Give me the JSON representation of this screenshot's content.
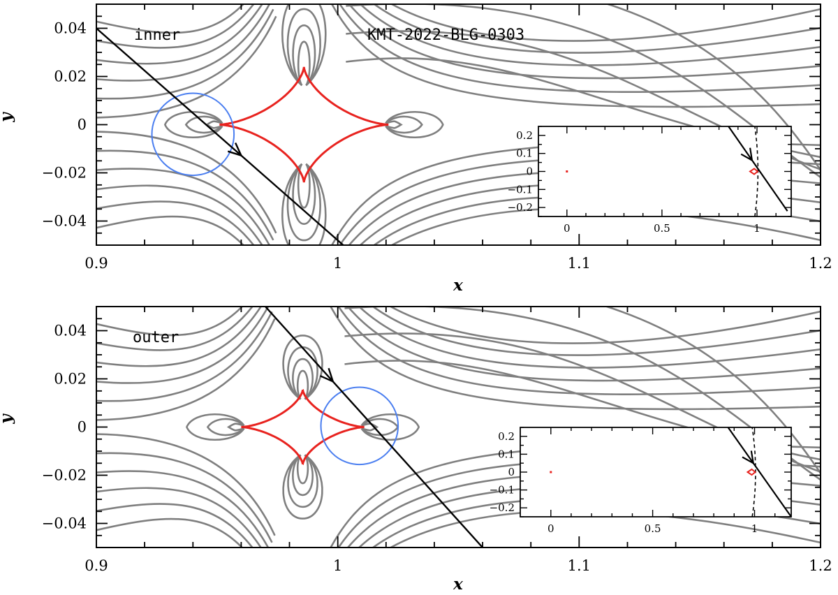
{
  "chart_data": [
    {
      "type": "line",
      "panel": "top",
      "title": "KMT-2022-BLG-0303",
      "label": "inner",
      "xlabel": "x",
      "ylabel": "y",
      "xlim": [
        0.9,
        1.2
      ],
      "ylim": [
        -0.05,
        0.05
      ],
      "xticks": [
        0.9,
        1,
        1.1,
        1.2
      ],
      "xtick_labels": [
        "0.9",
        "1",
        "1.1",
        "1.2"
      ],
      "yticks": [
        0.04,
        0.02,
        0,
        -0.02,
        -0.04
      ],
      "ytick_labels": [
        "0.04",
        "0.02",
        "0",
        "−0.02",
        "−0.04"
      ],
      "caustic": {
        "x_center": 0.986,
        "y_center": 0,
        "x_half_width": 0.035,
        "y_half_height": 0.024,
        "color": "#e8231f"
      },
      "source": {
        "x": 0.94,
        "y": -0.004,
        "radius": 0.017,
        "color": "#4a7ef0"
      },
      "trajectory": {
        "x": [
          0.9,
          1.1
        ],
        "y": [
          0.04,
          -0.136
        ],
        "arrow_at_x": 0.96
      },
      "contours": {
        "color": "#7f7f7f",
        "center_x": 0.986
      },
      "inset": {
        "xlim": [
          -0.15,
          1.18
        ],
        "ylim": [
          -0.25,
          0.25
        ],
        "xticks": [
          0,
          0.5,
          1
        ],
        "xtick_labels": [
          "0",
          "0.5",
          "1"
        ],
        "yticks": [
          0.2,
          0.1,
          0,
          -0.1,
          -0.2
        ],
        "ytick_labels": [
          "0.2",
          "0.1",
          "0",
          "−0.1",
          "−0.2"
        ],
        "central_caustic": {
          "x": 0,
          "y": 0
        },
        "planetary_caustic": {
          "x": 1,
          "y": 0
        },
        "trajectory": {
          "x": [
            0.85,
            1.16
          ],
          "y": [
            0.25,
            -0.22
          ]
        },
        "critical_curve": {
          "x_center": 1,
          "note_style": "dashed"
        }
      }
    },
    {
      "type": "line",
      "panel": "bottom",
      "label": "outer",
      "xlabel": "x",
      "ylabel": "y",
      "xlim": [
        0.9,
        1.2
      ],
      "ylim": [
        -0.05,
        0.05
      ],
      "xticks": [
        0.9,
        1,
        1.1,
        1.2
      ],
      "xtick_labels": [
        "0.9",
        "1",
        "1.1",
        "1.2"
      ],
      "yticks": [
        0.04,
        0.02,
        0,
        -0.02,
        -0.04
      ],
      "ytick_labels": [
        "0.04",
        "0.02",
        "0",
        "−0.02",
        "−0.04"
      ],
      "caustic": {
        "x_center": 0.9855,
        "y_center": 0,
        "x_half_width": 0.0255,
        "y_half_height": 0.0155,
        "color": "#e8231f"
      },
      "source": {
        "x": 1.009,
        "y": 0.0005,
        "radius": 0.016,
        "color": "#4a7ef0"
      },
      "trajectory": {
        "x": [
          0.97,
          1.06
        ],
        "y": [
          0.05,
          -0.05
        ],
        "arrow_at_x": 0.998
      },
      "contours": {
        "color": "#7f7f7f",
        "center_x": 0.9855
      },
      "inset": {
        "xlim": [
          -0.15,
          1.18
        ],
        "ylim": [
          -0.25,
          0.25
        ],
        "xticks": [
          0,
          0.5,
          1
        ],
        "xtick_labels": [
          "0",
          "0.5",
          "1"
        ],
        "yticks": [
          0.2,
          0.1,
          0,
          -0.1,
          -0.2
        ],
        "ytick_labels": [
          "0.2",
          "0.1",
          "0",
          "−0.1",
          "−0.2"
        ],
        "central_caustic": {
          "x": 0,
          "y": 0
        },
        "planetary_caustic": {
          "x": 1,
          "y": 0
        },
        "trajectory": {
          "x": [
            0.87,
            1.18
          ],
          "y": [
            0.25,
            -0.25
          ]
        },
        "critical_curve": {
          "x_center": 1,
          "note_style": "dashed"
        }
      }
    }
  ]
}
